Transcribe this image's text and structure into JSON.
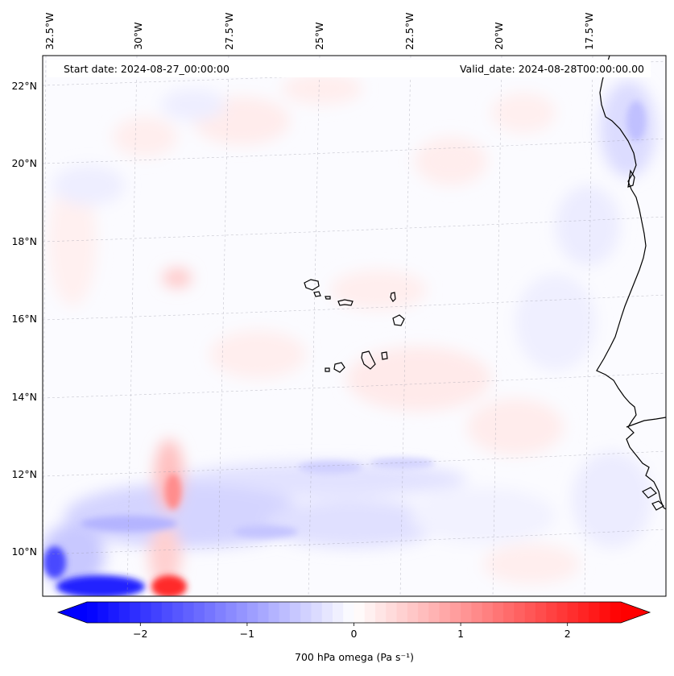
{
  "header": {
    "start_date": "Start date: 2024-08-27_00:00:00",
    "valid_date": "Valid_date: 2024-08-28T00:00:00.00"
  },
  "map": {
    "lon_range": [
      -33.0,
      -15.0
    ],
    "lat_range": [
      8.9,
      22.8
    ],
    "lon_ticks": [
      {
        "value": -32.5,
        "label": "32.5°W"
      },
      {
        "value": -30.0,
        "label": "30°W"
      },
      {
        "value": -27.5,
        "label": "27.5°W"
      },
      {
        "value": -25.0,
        "label": "25°W"
      },
      {
        "value": -22.5,
        "label": "22.5°W"
      },
      {
        "value": -20.0,
        "label": "20°W"
      },
      {
        "value": -17.5,
        "label": "17.5°W"
      }
    ],
    "lat_ticks": [
      {
        "value": 22,
        "label": "22°N"
      },
      {
        "value": 20,
        "label": "20°N"
      },
      {
        "value": 18,
        "label": "18°N"
      },
      {
        "value": 16,
        "label": "16°N"
      },
      {
        "value": 14,
        "label": "14°N"
      },
      {
        "value": 12,
        "label": "12°N"
      },
      {
        "value": 10,
        "label": "10°N"
      }
    ],
    "gridlines": true
  },
  "colorbar": {
    "label": "700 hPa omega (Pa s⁻¹)",
    "range": [
      -2.5,
      2.5
    ],
    "extend": "both",
    "colors": [
      "#0000ff",
      "#ffffff",
      "#ff0000"
    ],
    "ticks": [
      {
        "value": -2,
        "label": "−2"
      },
      {
        "value": -1,
        "label": "−1"
      },
      {
        "value": 0,
        "label": "0"
      },
      {
        "value": 1,
        "label": "1"
      },
      {
        "value": 2,
        "label": "2"
      }
    ]
  }
}
